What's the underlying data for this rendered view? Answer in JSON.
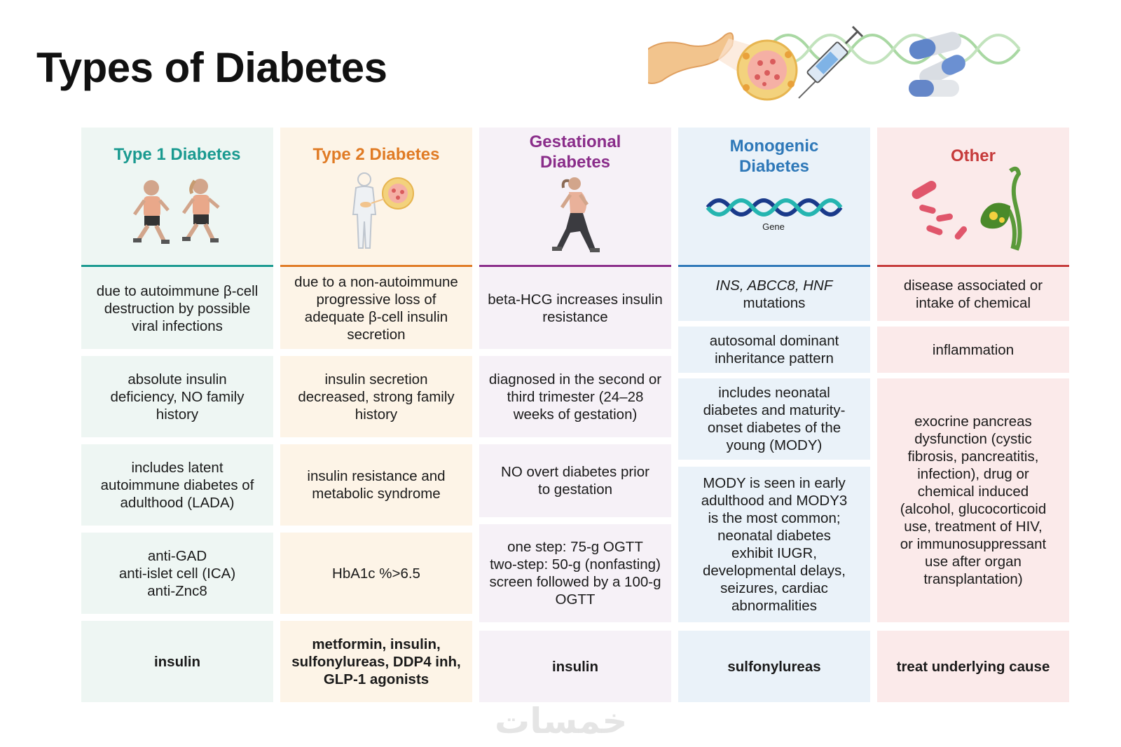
{
  "title": "Types of Diabetes",
  "watermark": "خمسات",
  "colors": {
    "type1": "#1a9a90",
    "type1_bg": "#eef6f3",
    "type2": "#e07b25",
    "type2_bg": "#fdf4e7",
    "gest": "#8a2d8a",
    "gest_bg": "#f6f1f7",
    "mono": "#2e78b8",
    "mono_bg": "#eaf2f9",
    "other": "#c63b3b",
    "other_bg": "#fbeaea"
  },
  "columns": [
    {
      "title": "Type 1 Diabetes",
      "cells": [
        [
          "due to autoimmune β-cell",
          "destruction by possible",
          "viral infections"
        ],
        [
          "absolute insulin",
          "deficiency, NO family",
          "history"
        ],
        [
          "includes latent",
          "autoimmune diabetes of",
          "adulthood (LADA)"
        ],
        [
          "anti-GAD",
          "anti-islet cell (ICA)",
          "anti-Znc8"
        ],
        [
          "insulin"
        ]
      ]
    },
    {
      "title": "Type 2 Diabetes",
      "cells": [
        [
          "due to a non-autoimmune",
          "progressive loss of",
          "adequate β-cell insulin",
          "secretion"
        ],
        [
          "insulin secretion",
          "decreased, strong family",
          "history"
        ],
        [
          "insulin resistance and",
          "metabolic syndrome"
        ],
        [
          "HbA1c %>6.5"
        ],
        [
          "metformin, insulin,",
          "sulfonylureas, DDP4 inh,",
          "GLP-1 agonists"
        ]
      ]
    },
    {
      "title_lines": [
        "Gestational",
        "Diabetes"
      ],
      "cells": [
        [
          "beta-HCG increases insulin",
          "resistance"
        ],
        [
          "diagnosed in the second or",
          "third trimester (24–28",
          "weeks of gestation)"
        ],
        [
          "NO overt diabetes prior",
          "to gestation"
        ],
        [
          "one step: 75-g OGTT",
          "two-step: 50-g (nonfasting)",
          "screen followed by a 100-g",
          "OGTT"
        ],
        [
          "insulin"
        ]
      ]
    },
    {
      "title_lines": [
        "Monogenic",
        "Diabetes"
      ],
      "gene_label": "Gene",
      "cells": [
        [
          "INS, ABCC8, HNF",
          "mutations"
        ],
        [
          "autosomal dominant",
          "inheritance pattern"
        ],
        [
          "includes neonatal",
          "diabetes and maturity-",
          "onset diabetes of the",
          "young (MODY)"
        ],
        [
          "MODY is seen in early",
          "adulthood and MODY3",
          "is the most common;",
          "neonatal diabetes",
          "exhibit IUGR,",
          "developmental delays,",
          "seizures, cardiac",
          "abnormalities"
        ],
        [
          "sulfonylureas"
        ]
      ]
    },
    {
      "title": "Other",
      "cells": [
        [
          "disease associated or",
          "intake of chemical"
        ],
        [
          "inflammation"
        ],
        [
          "exocrine pancreas",
          "dysfunction (cystic",
          "fibrosis, pancreatitis,",
          "infection), drug or",
          "chemical induced",
          "(alcohol, glucocorticoid",
          "use, treatment of HIV,",
          "or immunosuppressant",
          "use after organ",
          "transplantation)"
        ],
        [
          "treat underlying cause"
        ]
      ]
    }
  ]
}
